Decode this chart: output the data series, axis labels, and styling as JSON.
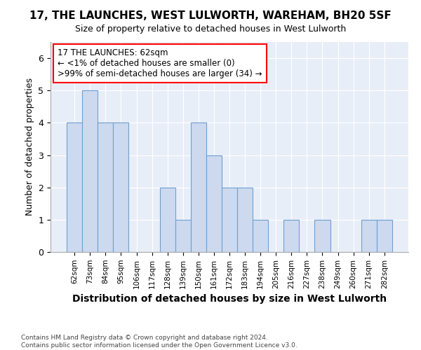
{
  "title": "17, THE LAUNCHES, WEST LULWORTH, WAREHAM, BH20 5SF",
  "subtitle": "Size of property relative to detached houses in West Lulworth",
  "xlabel": "Distribution of detached houses by size in West Lulworth",
  "ylabel": "Number of detached properties",
  "categories": [
    "62sqm",
    "73sqm",
    "84sqm",
    "95sqm",
    "106sqm",
    "117sqm",
    "128sqm",
    "139sqm",
    "150sqm",
    "161sqm",
    "172sqm",
    "183sqm",
    "194sqm",
    "205sqm",
    "216sqm",
    "227sqm",
    "238sqm",
    "249sqm",
    "260sqm",
    "271sqm",
    "282sqm"
  ],
  "values": [
    4,
    5,
    4,
    4,
    0,
    0,
    2,
    1,
    4,
    3,
    2,
    2,
    1,
    0,
    1,
    0,
    1,
    0,
    0,
    1,
    1
  ],
  "bar_color": "#ccd9ee",
  "bar_edge_color": "#6fa0d0",
  "annotation_box_text": "17 THE LAUNCHES: 62sqm\n← <1% of detached houses are smaller (0)\n>99% of semi-detached houses are larger (34) →",
  "ylim": [
    0,
    6.5
  ],
  "yticks": [
    0,
    1,
    2,
    3,
    4,
    5,
    6
  ],
  "footer": "Contains HM Land Registry data © Crown copyright and database right 2024.\nContains public sector information licensed under the Open Government Licence v3.0.",
  "bg_color": "#ffffff",
  "plot_bg_color": "#e8eef8"
}
